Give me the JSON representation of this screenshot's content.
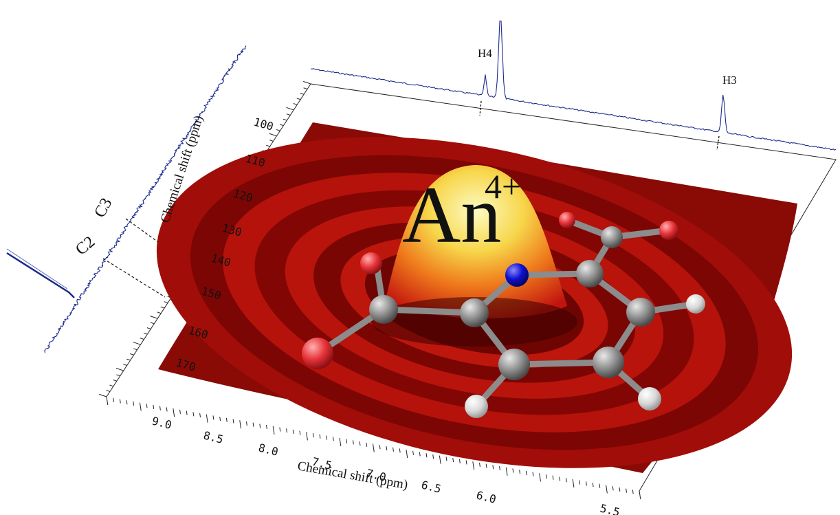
{
  "figure": {
    "ion_symbol": "An",
    "ion_charge": "4+",
    "colors": {
      "spectrum_line": "#1b2a8c",
      "surface_dark": "#7a0705",
      "surface_mid": "#c01010",
      "peak_top": "#fbf6a8",
      "carbon": "#8a8a8a",
      "hydrogen": "#d9d9d9",
      "oxygen": "#e8363c",
      "nitrogen": "#1010d0"
    },
    "x_axis": {
      "title": "Chemical shift (ppm)",
      "ticks": [
        "9.0",
        "8.5",
        "8.0",
        "7.5",
        "7.0",
        "6.5",
        "6.0",
        "5.5"
      ]
    },
    "y_axis": {
      "title": "Chemical shift (ppm)",
      "ticks": [
        "100",
        "110",
        "120",
        "130",
        "140",
        "150",
        "160",
        "170"
      ]
    },
    "top_spectrum": {
      "peaks": [
        "H4",
        "H3"
      ]
    },
    "side_spectrum": {
      "peaks": [
        "C3",
        "C2"
      ]
    },
    "molecule": {
      "atoms": [
        "C",
        "H",
        "O",
        "N"
      ]
    }
  }
}
